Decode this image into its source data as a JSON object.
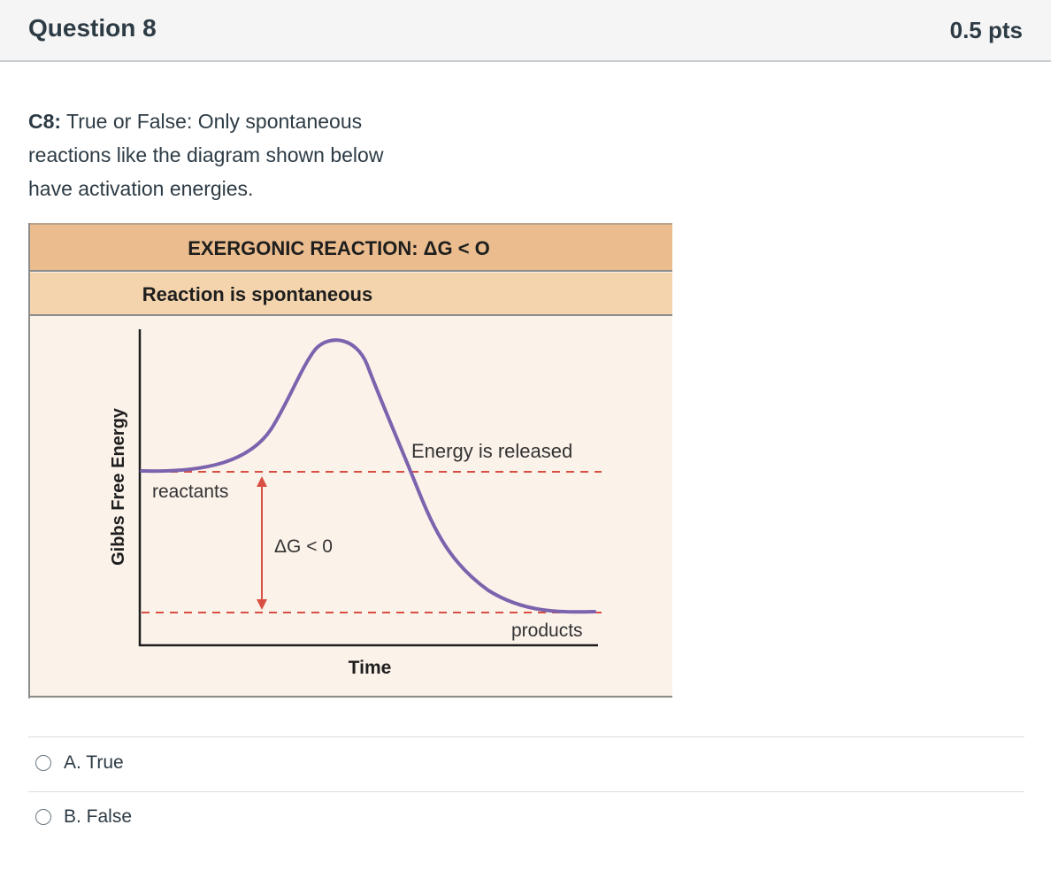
{
  "header": {
    "title": "Question 8",
    "points": "0.5 pts"
  },
  "question": {
    "prefix": "C8:",
    "text": " True or False: Only spontaneous reactions like the diagram shown below have activation energies."
  },
  "figure": {
    "title": "EXERGONIC REACTION: ΔG < O",
    "subtitle": "Reaction is spontaneous",
    "y_axis_label": "Gibbs Free Energy",
    "x_axis_label": "Time",
    "reactants_label": "reactants",
    "products_label": "products",
    "energy_label": "Energy is released",
    "delta_g_label": "ΔG < 0",
    "colors": {
      "title_band": "#ebbd8e",
      "subtitle_band": "#f4d4ad",
      "plot_bg": "#fbf2ea",
      "curve": "#7c63ad",
      "dashed": "#d94f44",
      "arrow": "#d94f44"
    }
  },
  "answers": [
    {
      "label": "A. True",
      "selected": false
    },
    {
      "label": "B. False",
      "selected": false
    }
  ]
}
